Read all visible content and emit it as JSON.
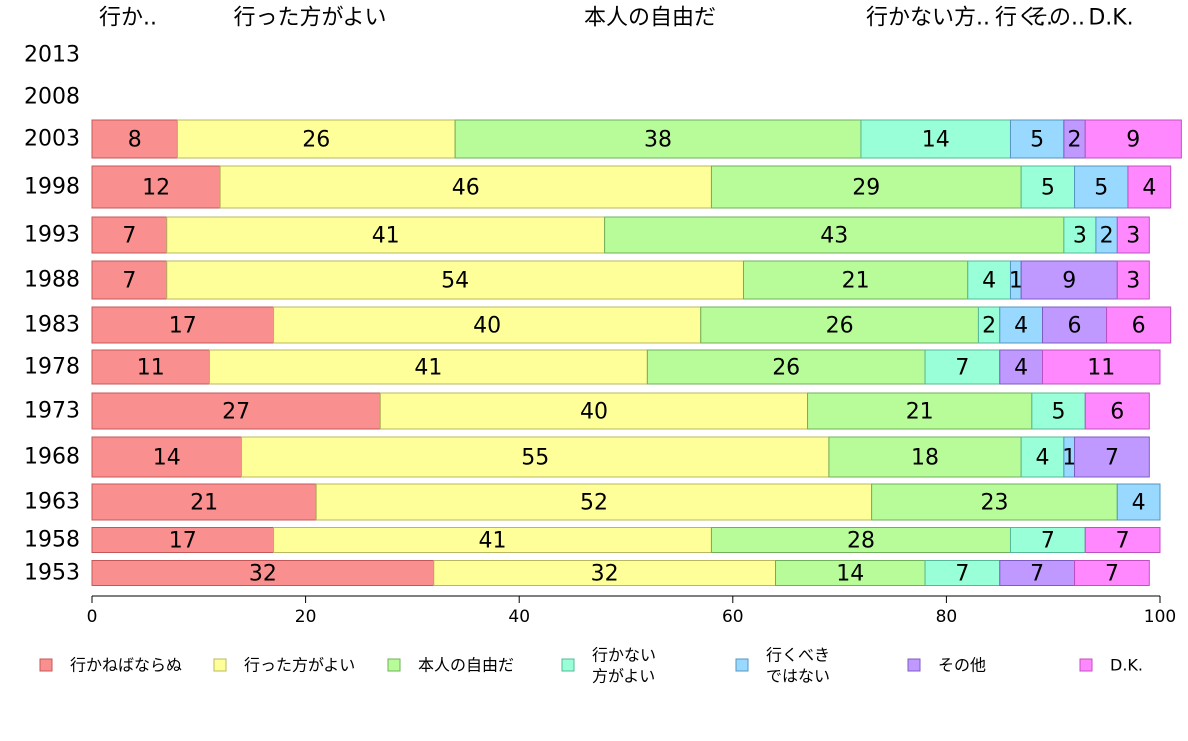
{
  "chart_data": {
    "type": "bar",
    "orientation": "horizontal",
    "stacked": true,
    "xlim": [
      0,
      100
    ],
    "xticks": [
      0,
      20,
      40,
      60,
      80,
      100
    ],
    "grid": false,
    "legend_placement": "bottom",
    "top_labels": [
      "行か..",
      "行った方がよい",
      "本人の自由だ",
      "行かない方..",
      "行く..",
      "その..",
      "D.K."
    ],
    "categories": [
      "2013",
      "2008",
      "2003",
      "1998",
      "1993",
      "1988",
      "1983",
      "1978",
      "1973",
      "1968",
      "1963",
      "1958",
      "1953"
    ],
    "series": [
      {
        "name": "行かねばならぬ",
        "legend_lines": [
          "行かねばならぬ"
        ],
        "color": "#f98f8f",
        "stroke": "#c45858",
        "values": [
          null,
          null,
          8,
          12,
          7,
          7,
          17,
          11,
          27,
          14,
          21,
          17,
          32
        ]
      },
      {
        "name": "行った方がよい",
        "legend_lines": [
          "行った方がよい"
        ],
        "color": "#ffff99",
        "stroke": "#b8b860",
        "values": [
          null,
          null,
          26,
          46,
          41,
          54,
          40,
          41,
          40,
          55,
          52,
          41,
          32
        ]
      },
      {
        "name": "本人の自由だ",
        "legend_lines": [
          "本人の自由だ"
        ],
        "color": "#b8fc9a",
        "stroke": "#6fb05a",
        "values": [
          null,
          null,
          38,
          29,
          43,
          21,
          26,
          26,
          21,
          18,
          23,
          28,
          14
        ]
      },
      {
        "name": "行かない方がよい",
        "legend_lines": [
          "行かない",
          "方がよい"
        ],
        "color": "#99ffd9",
        "stroke": "#55b896",
        "values": [
          null,
          null,
          14,
          5,
          3,
          4,
          2,
          7,
          5,
          4,
          0,
          7,
          7
        ]
      },
      {
        "name": "行くべきではない",
        "legend_lines": [
          "行くべき",
          "ではない"
        ],
        "color": "#99d9ff",
        "stroke": "#5596c0",
        "values": [
          null,
          null,
          5,
          5,
          2,
          1,
          4,
          0,
          0,
          1,
          4,
          0,
          0
        ]
      },
      {
        "name": "その他",
        "legend_lines": [
          "その他"
        ],
        "color": "#bf99ff",
        "stroke": "#7f5cc0",
        "values": [
          null,
          null,
          2,
          0,
          0,
          9,
          6,
          4,
          0,
          7,
          0,
          0,
          7
        ]
      },
      {
        "name": "D.K.",
        "legend_lines": [
          "D.K."
        ],
        "color": "#ff88ff",
        "stroke": "#c050c0",
        "values": [
          null,
          null,
          9,
          4,
          3,
          3,
          6,
          11,
          6,
          0,
          0,
          7,
          7
        ]
      }
    ]
  }
}
